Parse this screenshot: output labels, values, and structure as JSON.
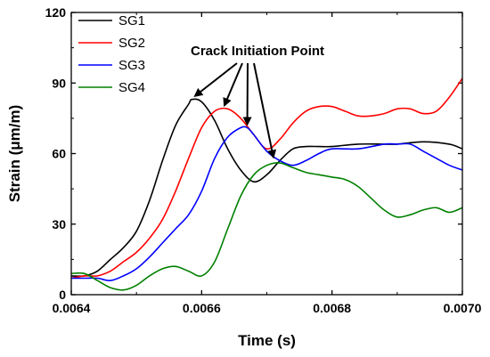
{
  "chart_data": {
    "type": "line",
    "xlabel": "Time (s)",
    "ylabel": "Strain (μm/m)",
    "xlim": [
      0.0064,
      0.007
    ],
    "ylim": [
      0,
      120
    ],
    "xticks": [
      0.0064,
      0.0066,
      0.0068,
      0.007
    ],
    "xtick_labels": [
      "0.0064",
      "0.0066",
      "0.0068",
      "0.0070"
    ],
    "yticks": [
      0,
      30,
      60,
      90,
      120
    ],
    "ytick_labels": [
      "0",
      "30",
      "60",
      "90",
      "120"
    ],
    "grid": false,
    "legend_position": "top-left",
    "series": [
      {
        "name": "SG1",
        "color": "#000000",
        "x": [
          0.0064,
          0.00642,
          0.00644,
          0.00646,
          0.00648,
          0.0065,
          0.00652,
          0.00654,
          0.00656,
          0.00658,
          0.006585,
          0.0066,
          0.00662,
          0.00664,
          0.00666,
          0.00668,
          0.0067,
          0.00672,
          0.00674,
          0.00676,
          0.00678,
          0.0068,
          0.00684,
          0.00688,
          0.0069,
          0.00694,
          0.00698,
          0.007
        ],
        "y": [
          8,
          8,
          10,
          15,
          20,
          27,
          40,
          57,
          72,
          81,
          83,
          82,
          74,
          62,
          53,
          48,
          51,
          57,
          62,
          63,
          63,
          63,
          64,
          64,
          64,
          65,
          64,
          62
        ]
      },
      {
        "name": "SG2",
        "color": "#ff0000",
        "x": [
          0.0064,
          0.00642,
          0.00644,
          0.00646,
          0.00648,
          0.0065,
          0.00652,
          0.00654,
          0.00656,
          0.00658,
          0.0066,
          0.00662,
          0.00664,
          0.00666,
          0.00668,
          0.0067,
          0.00672,
          0.00674,
          0.00676,
          0.00678,
          0.0068,
          0.00682,
          0.00684,
          0.00686,
          0.00688,
          0.0069,
          0.00692,
          0.00694,
          0.00696,
          0.00698,
          0.007
        ],
        "y": [
          7,
          8,
          8,
          10,
          14,
          18,
          24,
          32,
          44,
          58,
          71,
          78,
          79,
          75,
          68,
          62,
          66,
          73,
          78,
          80,
          80,
          78,
          76,
          76,
          77,
          79,
          79,
          77,
          78,
          84,
          92
        ]
      },
      {
        "name": "SG3",
        "color": "#0000ff",
        "x": [
          0.0064,
          0.00642,
          0.00644,
          0.00646,
          0.00648,
          0.0065,
          0.00652,
          0.00654,
          0.00656,
          0.00658,
          0.0066,
          0.00662,
          0.00664,
          0.00666,
          0.00667,
          0.00668,
          0.0067,
          0.00672,
          0.00674,
          0.00676,
          0.00678,
          0.0068,
          0.00684,
          0.00688,
          0.0069,
          0.00692,
          0.00694,
          0.00696,
          0.00698,
          0.007
        ],
        "y": [
          7,
          7,
          7,
          6,
          8,
          11,
          16,
          22,
          28,
          34,
          44,
          58,
          67,
          71,
          71,
          68,
          61,
          57,
          55,
          57,
          60,
          62,
          62,
          64,
          64,
          64,
          61,
          58,
          55,
          53
        ]
      },
      {
        "name": "SG4",
        "color": "#008000",
        "x": [
          0.0064,
          0.00642,
          0.00644,
          0.00646,
          0.00648,
          0.0065,
          0.00652,
          0.00654,
          0.00656,
          0.00658,
          0.0066,
          0.00662,
          0.00664,
          0.00666,
          0.00668,
          0.0067,
          0.00672,
          0.00674,
          0.00676,
          0.00678,
          0.0068,
          0.00682,
          0.00684,
          0.00686,
          0.00688,
          0.0069,
          0.00692,
          0.00694,
          0.00696,
          0.00698,
          0.007
        ],
        "y": [
          9,
          9,
          6,
          3,
          2,
          4,
          8,
          11,
          12,
          10,
          8,
          14,
          28,
          42,
          51,
          55,
          56,
          54,
          52,
          51,
          50,
          49,
          46,
          41,
          36,
          33,
          34,
          36,
          37,
          35,
          37
        ]
      }
    ],
    "annotation": {
      "text": "Crack Initiation Point",
      "arrow_targets": [
        {
          "x": 0.00659,
          "y": 83
        },
        {
          "x": 0.006635,
          "y": 79
        },
        {
          "x": 0.00667,
          "y": 71
        },
        {
          "x": 0.00671,
          "y": 57
        }
      ]
    }
  }
}
